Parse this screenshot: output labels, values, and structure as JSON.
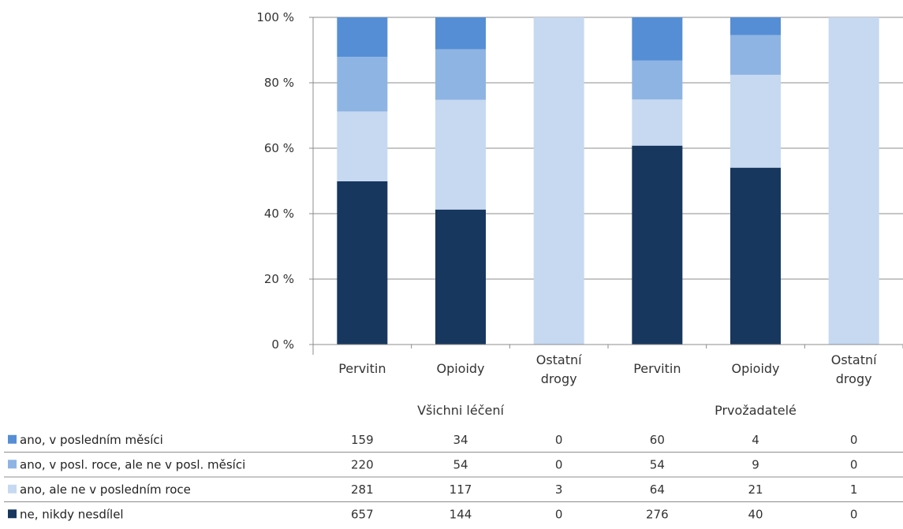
{
  "chart_data": {
    "type": "bar",
    "stacked": "percent",
    "y_ticks": [
      "0 %",
      "20 %",
      "40 %",
      "60 %",
      "80 %",
      "100 %"
    ],
    "ylim": [
      0,
      100
    ],
    "grid": true,
    "legend": "table-left",
    "categories": [
      {
        "label": [
          "Pervitin"
        ],
        "group": 0
      },
      {
        "label": [
          "Opioidy"
        ],
        "group": 0
      },
      {
        "label": [
          "Ostatní",
          "drogy"
        ],
        "group": 0
      },
      {
        "label": [
          "Pervitin"
        ],
        "group": 1
      },
      {
        "label": [
          "Opioidy"
        ],
        "group": 1
      },
      {
        "label": [
          "Ostatní",
          "drogy"
        ],
        "group": 1
      }
    ],
    "groups": [
      "Všichni léčení",
      "Prvožadatelé"
    ],
    "series": [
      {
        "name": "ne, nikdy nesdílel",
        "color": "#17375e",
        "values": [
          657,
          144,
          0,
          276,
          40,
          0
        ]
      },
      {
        "name": "ano, ale ne v posledním roce",
        "color": "#c6d9f1",
        "values": [
          281,
          117,
          3,
          64,
          21,
          1
        ]
      },
      {
        "name": "ano, v posl. roce, ale ne v posl. měsíci",
        "color": "#8eb4e3",
        "values": [
          220,
          54,
          0,
          54,
          9,
          0
        ]
      },
      {
        "name": "ano, v posledním měsíci",
        "color": "#558ed5",
        "values": [
          159,
          34,
          0,
          60,
          4,
          0
        ]
      }
    ],
    "table_order": [
      3,
      2,
      1,
      0
    ]
  }
}
